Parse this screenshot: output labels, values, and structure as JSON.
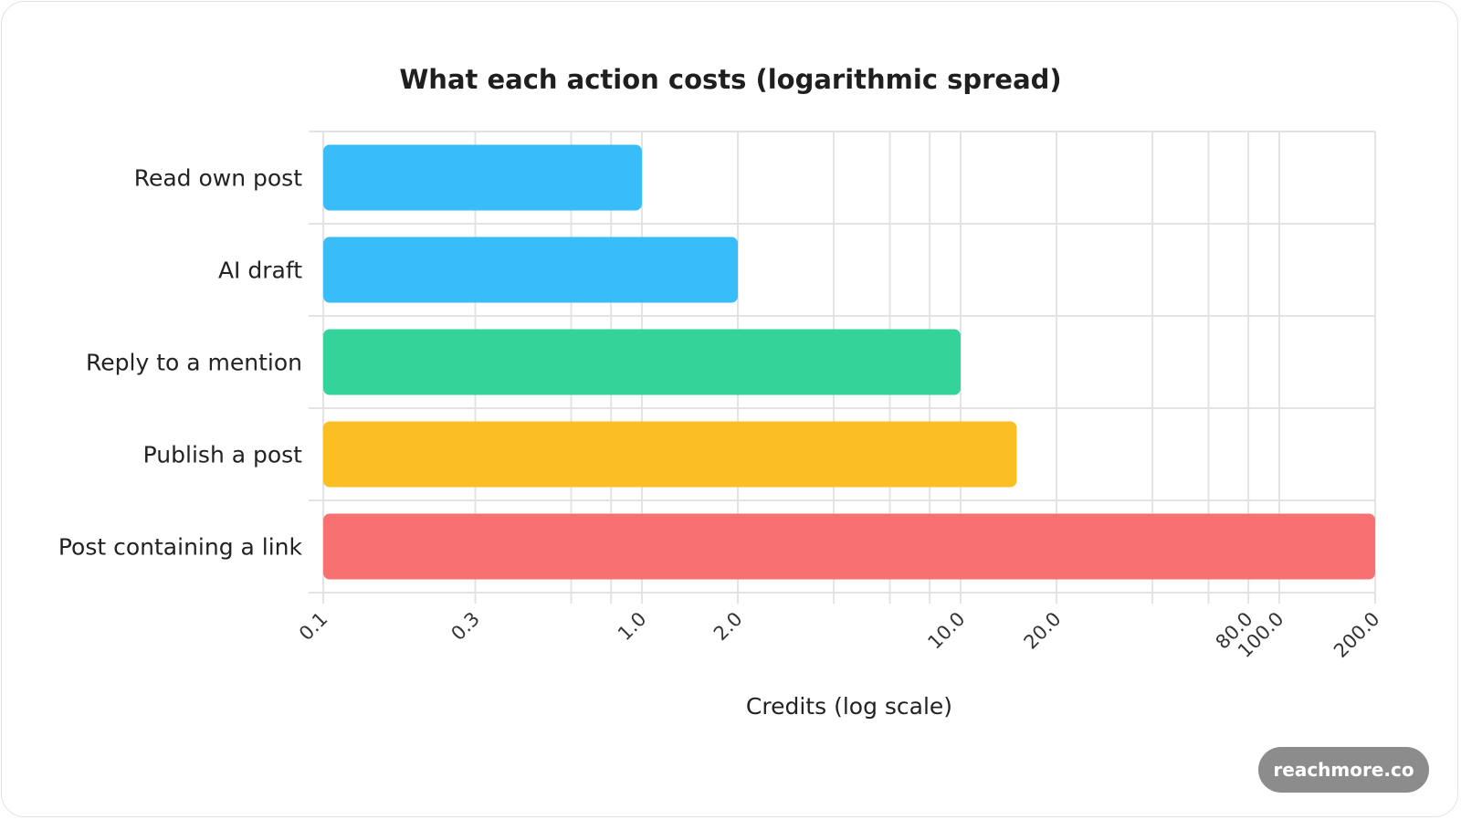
{
  "chart_data": {
    "type": "bar",
    "orientation": "horizontal",
    "title": "What each action costs (logarithmic spread)",
    "xlabel": "Credits (log scale)",
    "ylabel": "",
    "x_scale": "log",
    "xlim": [
      0.1,
      200
    ],
    "x_ticks": [
      {
        "value": 0.1,
        "label": "0.1"
      },
      {
        "value": 0.3,
        "label": "0.3"
      },
      {
        "value": 1,
        "label": "1.0"
      },
      {
        "value": 2,
        "label": "2.0"
      },
      {
        "value": 10,
        "label": "10.0"
      },
      {
        "value": 20,
        "label": "20.0"
      },
      {
        "value": 80,
        "label": "80.0"
      },
      {
        "value": 100,
        "label": "100.0"
      },
      {
        "value": 200,
        "label": "200.0"
      }
    ],
    "x_gridlines": [
      0.1,
      0.3,
      0.6,
      0.8,
      1,
      2,
      4,
      6,
      8,
      10,
      20,
      40,
      60,
      80,
      100,
      200
    ],
    "grid": true,
    "categories": [
      "Read own post",
      "AI draft",
      "Reply to a mention",
      "Publish a post",
      "Post containing a link"
    ],
    "values": [
      1,
      2,
      10,
      15,
      200
    ],
    "colors": [
      "#38bdf8",
      "#38bdf8",
      "#34d399",
      "#fbbf24",
      "#f87171"
    ]
  },
  "badge": {
    "text": "reachmore.co"
  }
}
